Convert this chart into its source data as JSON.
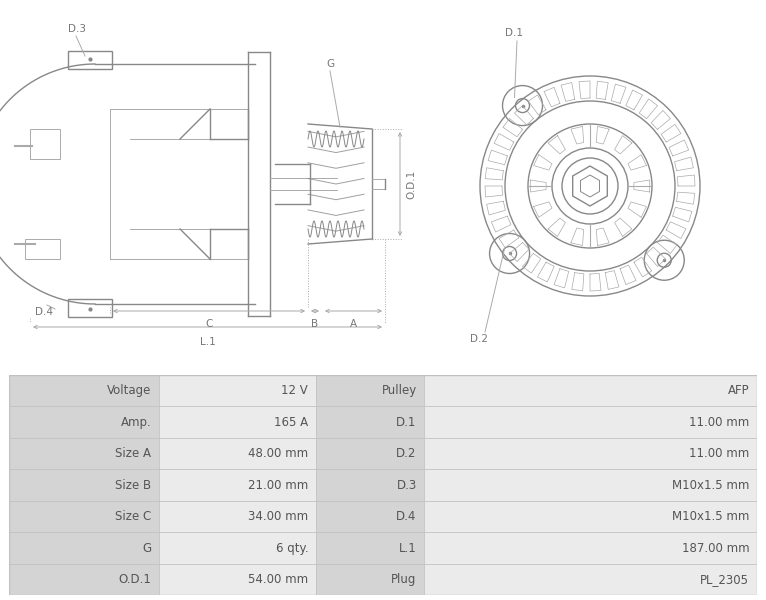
{
  "bg_color": "#ffffff",
  "table_bg_label": "#d4d4d4",
  "table_bg_value": "#ebebeb",
  "table_border": "#c0c0c0",
  "table_text_color": "#555555",
  "rows": [
    {
      "left_label": "Voltage",
      "left_val": "12 V",
      "right_label": "Pulley",
      "right_val": "AFP"
    },
    {
      "left_label": "Amp.",
      "left_val": "165 A",
      "right_label": "D.1",
      "right_val": "11.00 mm"
    },
    {
      "left_label": "Size A",
      "left_val": "48.00 mm",
      "right_label": "D.2",
      "right_val": "11.00 mm"
    },
    {
      "left_label": "Size B",
      "left_val": "21.00 mm",
      "right_label": "D.3",
      "right_val": "M10x1.5 mm"
    },
    {
      "left_label": "Size C",
      "left_val": "34.00 mm",
      "right_label": "D.4",
      "right_val": "M10x1.5 mm"
    },
    {
      "left_label": "G",
      "left_val": "6 qty.",
      "right_label": "L.1",
      "right_val": "187.00 mm"
    },
    {
      "left_label": "O.D.1",
      "left_val": "54.00 mm",
      "right_label": "Plug",
      "right_val": "PL_2305"
    }
  ],
  "line_color": "#aaaaaa",
  "line_color_dark": "#888888",
  "dim_color": "#aaaaaa",
  "label_color": "#777777",
  "font_size_label": 7.5
}
